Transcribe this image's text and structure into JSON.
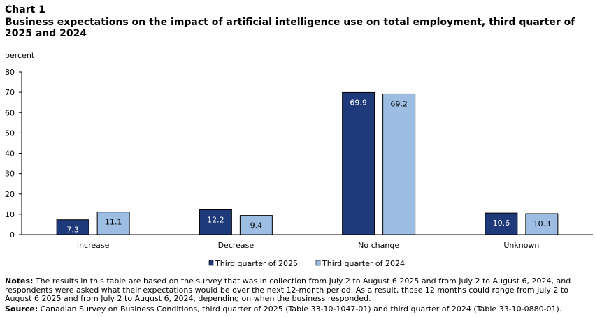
{
  "header": {
    "chart_number": "Chart 1",
    "title": "Business expectations on the impact of artificial  intelligence  use on total employment, third quarter of 2025 and 2024"
  },
  "chart_data": {
    "type": "bar",
    "ylabel": "percent",
    "ylim": [
      0,
      80
    ],
    "yticks": [
      0,
      10,
      20,
      30,
      40,
      50,
      60,
      70,
      80
    ],
    "categories": [
      "Increase",
      "Decrease",
      "No change",
      "Unknown"
    ],
    "series": [
      {
        "name": "Third quarter of 2025",
        "color": "#1f3a7a",
        "values": [
          7.3,
          12.2,
          69.9,
          10.6
        ]
      },
      {
        "name": "Third quarter of 2024",
        "color": "#9dbde2",
        "values": [
          11.1,
          9.4,
          69.2,
          10.3
        ]
      }
    ],
    "legend_position": "bottom",
    "grid": false,
    "data_labels": true
  },
  "footer": {
    "notes_label": "Notes:",
    "notes_text": "The results in this table are based on the survey that was in collection from July 2 to August 6 2025 and from July 2 to August 6, 2024, and respondents were asked what their expectations would be over the next 12-month period. As a result, those 12 months could range from July 2 to August 6 2025 and from July 2 to August 6, 2024, depending on when the business responded.",
    "source_label": "Source:",
    "source_text": "Canadian Survey on Business Conditions, third quarter of 2025  (Table 33-10-1047-01) and  third quarter of 2024 (Table 33-10-0880-01)."
  }
}
